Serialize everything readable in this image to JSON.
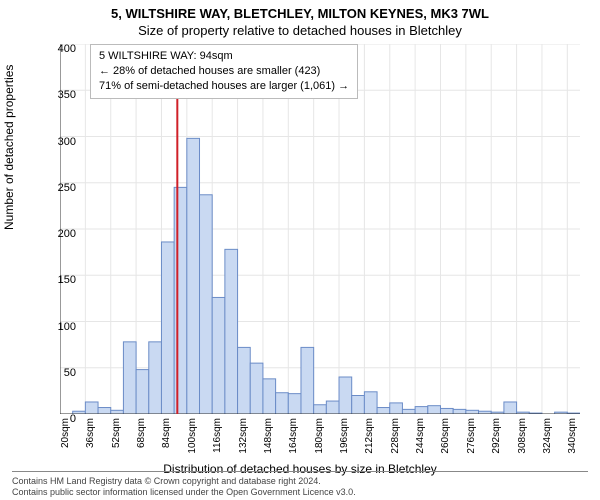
{
  "title_line1": "5, WILTSHIRE WAY, BLETCHLEY, MILTON KEYNES, MK3 7WL",
  "title_line2": "Size of property relative to detached houses in Bletchley",
  "info_box": {
    "line1": "5 WILTSHIRE WAY: 94sqm",
    "line2": "← 28% of detached houses are smaller (423)",
    "line3": "71% of semi-detached houses are larger (1,061) →"
  },
  "ylabel": "Number of detached properties",
  "xlabel": "Distribution of detached houses by size in Bletchley",
  "footer": {
    "l1": "Contains HM Land Registry data © Crown copyright and database right 2024.",
    "l2": "Contains public sector information licensed under the Open Government Licence v3.0."
  },
  "chart": {
    "type": "histogram",
    "ylim": [
      0,
      400
    ],
    "ytick_step": 50,
    "xlim_sqm": [
      20,
      348
    ],
    "xtick_start": 20,
    "xtick_step": 16,
    "xtick_count": 21,
    "xtick_suffix": "sqm",
    "bin_width_sqm": 8,
    "marker_x_sqm": 94,
    "bar_fill": "#c9d9f2",
    "bar_stroke": "#6b8cc7",
    "marker_color": "#d02028",
    "grid_color": "#e6e6e6",
    "axis_color": "#333333",
    "background": "#ffffff",
    "values": [
      0,
      3,
      13,
      7,
      4,
      78,
      48,
      78,
      186,
      245,
      298,
      237,
      126,
      178,
      72,
      55,
      38,
      23,
      22,
      72,
      10,
      14,
      40,
      20,
      24,
      7,
      12,
      5,
      8,
      9,
      6,
      5,
      4,
      3,
      2,
      13,
      2,
      1,
      0,
      2,
      1
    ]
  }
}
